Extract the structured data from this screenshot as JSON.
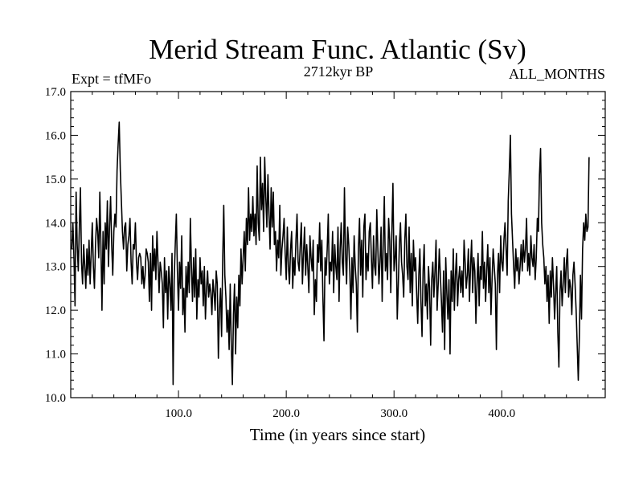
{
  "colors": {
    "background": "#ffffff",
    "ink": "#000000"
  },
  "chart_data": {
    "type": "line",
    "title": "Merid Stream Func. Atlantic (Sv)",
    "subtitle_left": "Expt = tfMFo",
    "subtitle_center": "2712kyr BP",
    "subtitle_right": "ALL_MONTHS",
    "xlabel": "Time (in years since start)",
    "ylabel": "",
    "xlim": [
      0,
      496
    ],
    "ylim": [
      10.0,
      17.0
    ],
    "x_ticks": [
      100,
      200,
      300,
      400
    ],
    "x_tick_labels": [
      "100.0",
      "200.0",
      "300.0",
      "400.0"
    ],
    "y_ticks": [
      10,
      11,
      12,
      13,
      14,
      15,
      16,
      17
    ],
    "y_tick_labels": [
      "10.0",
      "11.0",
      "12.0",
      "13.0",
      "14.0",
      "15.0",
      "16.0",
      "17.0"
    ],
    "grid": false,
    "series": [
      {
        "x_start": 1,
        "x_step": 1,
        "values": [
          13.4,
          14.0,
          13.2,
          12.1,
          14.7,
          13.5,
          12.9,
          13.9,
          14.8,
          13.1,
          12.6,
          13.5,
          13.0,
          12.5,
          13.4,
          12.8,
          13.6,
          12.6,
          13.3,
          14.0,
          13.0,
          12.5,
          13.5,
          14.1,
          13.8,
          13.2,
          14.7,
          13.5,
          12.0,
          13.8,
          12.6,
          14.0,
          13.4,
          14.5,
          13.0,
          13.9,
          14.6,
          13.5,
          12.8,
          13.8,
          14.2,
          13.9,
          15.2,
          15.8,
          16.3,
          15.2,
          14.5,
          13.8,
          13.4,
          13.9,
          14.0,
          12.9,
          13.5,
          13.7,
          14.1,
          13.1,
          12.6,
          13.5,
          13.4,
          14.0,
          13.1,
          12.7,
          13.2,
          13.3,
          13.2,
          12.6,
          13.0,
          12.5,
          12.8,
          13.4,
          13.3,
          13.1,
          12.2,
          13.3,
          12.0,
          13.7,
          12.9,
          13.4,
          12.7,
          13.8,
          13.1,
          12.4,
          13.1,
          12.9,
          12.6,
          11.6,
          13.2,
          12.4,
          12.9,
          11.8,
          13.0,
          12.6,
          12.0,
          13.3,
          10.3,
          12.7,
          13.5,
          14.2,
          12.9,
          12.0,
          13.1,
          12.5,
          13.7,
          11.9,
          12.5,
          11.5,
          13.0,
          12.3,
          13.1,
          12.4,
          14.1,
          13.0,
          12.2,
          13.2,
          12.3,
          13.4,
          11.8,
          12.7,
          12.3,
          13.2,
          12.6,
          12.9,
          12.1,
          13.0,
          11.8,
          12.5,
          12.9,
          12.3,
          12.6,
          12.4,
          11.9,
          12.7,
          12.4,
          12.0,
          12.9,
          12.6,
          10.9,
          12.0,
          12.5,
          11.4,
          13.1,
          14.4,
          12.8,
          12.3,
          11.5,
          12.0,
          11.1,
          12.6,
          11.2,
          10.3,
          11.9,
          12.6,
          11.0,
          12.3,
          11.6,
          12.8,
          12.1,
          13.4,
          12.6,
          13.2,
          13.8,
          12.9,
          14.1,
          13.5,
          14.8,
          13.6,
          14.2,
          13.8,
          14.6,
          13.7,
          14.2,
          13.5,
          15.3,
          14.0,
          13.6,
          15.5,
          14.3,
          14.9,
          13.8,
          15.5,
          14.6,
          13.9,
          15.1,
          14.2,
          13.4,
          14.8,
          13.9,
          14.7,
          13.5,
          13.8,
          12.9,
          13.6,
          13.2,
          14.4,
          12.8,
          13.4,
          13.7,
          14.1,
          13.3,
          12.7,
          13.9,
          13.0,
          12.6,
          13.4,
          13.8,
          12.5,
          13.2,
          12.8,
          13.6,
          14.2,
          13.1,
          12.9,
          13.5,
          14.0,
          12.6,
          13.3,
          13.9,
          12.8,
          13.5,
          13.0,
          12.4,
          13.7,
          13.2,
          12.9,
          13.6,
          11.9,
          12.7,
          12.2,
          13.5,
          13.1,
          14.0,
          12.9,
          13.6,
          12.3,
          11.3,
          13.2,
          12.8,
          13.4,
          14.2,
          12.6,
          13.1,
          12.9,
          13.8,
          12.4,
          13.5,
          13.0,
          12.7,
          13.9,
          12.2,
          13.4,
          14.0,
          13.1,
          12.8,
          14.8,
          13.3,
          12.6,
          13.9,
          13.5,
          12.9,
          11.8,
          13.2,
          12.4,
          13.7,
          13.0,
          12.6,
          11.5,
          13.4,
          14.1,
          12.8,
          13.6,
          12.3,
          13.9,
          14.2,
          12.7,
          13.3,
          12.9,
          13.8,
          14.0,
          13.2,
          12.5,
          13.7,
          13.0,
          12.8,
          14.3,
          13.4,
          12.6,
          13.1,
          13.9,
          12.2,
          13.5,
          14.6,
          12.9,
          13.3,
          12.7,
          14.1,
          13.6,
          12.4,
          13.8,
          14.9,
          12.9,
          13.2,
          13.7,
          11.8,
          12.6,
          13.5,
          14.0,
          13.1,
          12.8,
          12.3,
          13.6,
          14.2,
          13.0,
          12.7,
          13.9,
          12.4,
          13.3,
          12.1,
          13.6,
          12.9,
          13.2,
          12.4,
          11.7,
          12.8,
          13.4,
          12.2,
          11.4,
          12.9,
          13.5,
          12.1,
          12.6,
          11.8,
          13.0,
          12.5,
          11.2,
          12.7,
          13.1,
          12.3,
          12.9,
          13.6,
          12.0,
          12.6,
          13.4,
          12.8,
          12.2,
          11.5,
          12.9,
          11.1,
          13.2,
          12.4,
          11.8,
          12.7,
          11.0,
          12.9,
          12.2,
          13.4,
          12.0,
          12.8,
          13.3,
          12.1,
          12.7,
          13.0,
          12.4,
          12.9,
          12.3,
          13.6,
          13.1,
          12.5,
          12.8,
          13.4,
          12.2,
          13.0,
          13.6,
          12.4,
          13.2,
          12.9,
          11.7,
          12.6,
          13.3,
          12.1,
          13.0,
          12.7,
          13.8,
          12.5,
          13.1,
          12.2,
          12.9,
          13.5,
          12.4,
          13.2,
          11.9,
          12.7,
          13.4,
          13.0,
          12.6,
          11.1,
          12.8,
          13.3,
          12.4,
          13.7,
          13.1,
          12.9,
          13.6,
          14.0,
          13.4,
          12.8,
          14.5,
          15.2,
          16.0,
          14.2,
          13.6,
          13.0,
          12.5,
          13.4,
          12.9,
          13.2,
          12.6,
          13.0,
          13.5,
          12.9,
          13.6,
          13.1,
          13.4,
          14.1,
          12.9,
          13.3,
          12.8,
          13.7,
          13.2,
          13.0,
          13.5,
          12.7,
          13.2,
          14.1,
          13.8,
          15.1,
          15.7,
          14.0,
          13.5,
          13.2,
          12.6,
          13.0,
          12.2,
          12.8,
          11.7,
          12.9,
          12.3,
          13.2,
          12.6,
          11.8,
          12.4,
          13.0,
          11.5,
          10.7,
          12.4,
          12.9,
          12.1,
          12.6,
          13.2,
          12.4,
          13.1,
          13.4,
          12.3,
          12.7,
          12.5,
          11.9,
          12.8,
          13.1,
          12.6,
          12.0,
          11.2,
          10.4,
          11.4,
          12.8,
          11.8,
          13.4,
          14.0,
          13.6,
          14.2,
          13.8,
          13.9,
          15.5
        ]
      }
    ]
  }
}
